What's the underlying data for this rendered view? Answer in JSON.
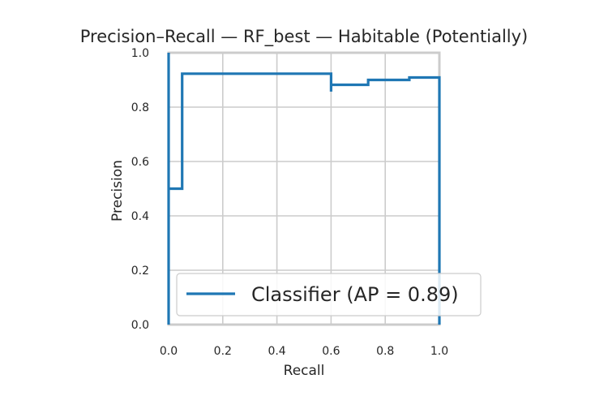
{
  "chart_data": {
    "type": "line",
    "title": "Precision–Recall — RF_best — Habitable (Potentially)",
    "xlabel": "Recall",
    "ylabel": "Precision",
    "xlim": [
      0.0,
      1.0
    ],
    "ylim": [
      0.0,
      1.0
    ],
    "xticks": [
      "0.0",
      "0.2",
      "0.4",
      "0.6",
      "0.8",
      "1.0"
    ],
    "yticks": [
      "0.0",
      "0.2",
      "0.4",
      "0.6",
      "0.8",
      "1.0"
    ],
    "grid": true,
    "legend_position": "lower-right",
    "series": [
      {
        "name": "Classifier (AP = 0.89)",
        "color": "#1f77b4",
        "drawstyle": "steps",
        "points": [
          [
            0.0,
            1.0
          ],
          [
            0.0,
            0.0
          ],
          [
            0.0,
            0.5
          ],
          [
            0.05,
            0.5
          ],
          [
            0.05,
            0.923
          ],
          [
            0.6,
            0.923
          ],
          [
            0.6,
            0.857
          ],
          [
            0.6,
            0.882
          ],
          [
            0.737,
            0.882
          ],
          [
            0.737,
            0.9
          ],
          [
            0.889,
            0.9
          ],
          [
            0.889,
            0.909
          ],
          [
            1.0,
            0.909
          ],
          [
            1.0,
            0.0
          ]
        ]
      }
    ]
  }
}
